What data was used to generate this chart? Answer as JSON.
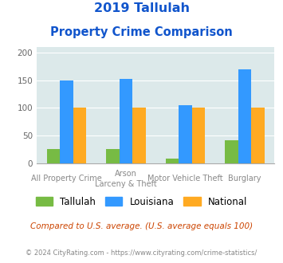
{
  "title_line1": "2019 Tallulah",
  "title_line2": "Property Crime Comparison",
  "cat_labels_line1": [
    "All Property Crime",
    "Arson",
    "Motor Vehicle Theft",
    "Burglary"
  ],
  "cat_labels_line2": [
    "",
    "Larceny & Theft",
    "",
    ""
  ],
  "tallulah": [
    26,
    26,
    8,
    42
  ],
  "louisiana": [
    150,
    153,
    105,
    170
  ],
  "national": [
    100,
    100,
    100,
    100
  ],
  "colors": {
    "tallulah": "#77bb44",
    "louisiana": "#3399ff",
    "national": "#ffaa22"
  },
  "ylim": [
    0,
    210
  ],
  "yticks": [
    0,
    50,
    100,
    150,
    200
  ],
  "background_color": "#dce9ea",
  "title_color": "#1155cc",
  "footer_text": "Compared to U.S. average. (U.S. average equals 100)",
  "copyright_text": "© 2024 CityRating.com - https://www.cityrating.com/crime-statistics/",
  "footer_color": "#cc4400",
  "copyright_color": "#888888",
  "legend_labels": [
    "Tallulah",
    "Louisiana",
    "National"
  ]
}
